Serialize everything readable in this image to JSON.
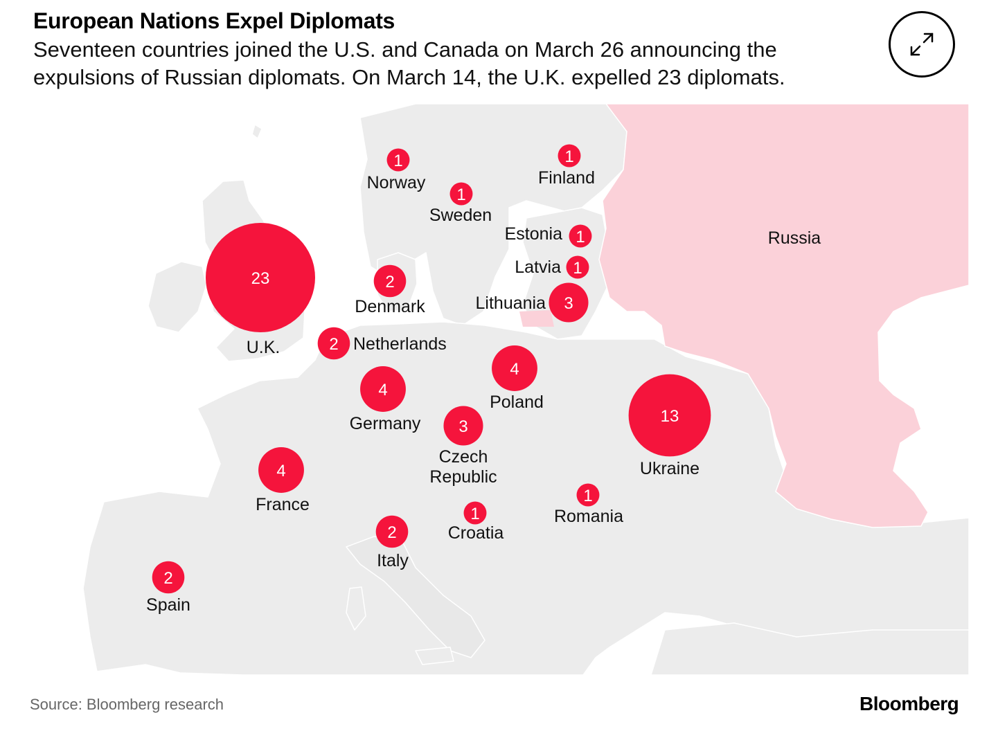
{
  "header": {
    "title": "European Nations Expel Diplomats",
    "subtitle": "Seventeen countries joined the U.S. and Canada on March 26 announcing the expulsions of Russian diplomats. On March 14, the U.K. expelled 23 diplomats."
  },
  "controls": {
    "expand_icon": "expand-arrows-icon"
  },
  "colors": {
    "bubble": "#f5143c",
    "russia": "#fbd1d9",
    "land": "#ececec",
    "background": "#ffffff"
  },
  "map": {
    "highlight": {
      "label": "Russia"
    },
    "countries": [
      {
        "label": "U.K.",
        "value": 23
      },
      {
        "label": "Ukraine",
        "value": 13
      },
      {
        "label": "Poland",
        "value": 4
      },
      {
        "label": "Germany",
        "value": 4
      },
      {
        "label": "France",
        "value": 4
      },
      {
        "label": "Lithuania",
        "value": 3
      },
      {
        "label": "Czech Republic",
        "value": 3
      },
      {
        "label": "Denmark",
        "value": 2
      },
      {
        "label": "Netherlands",
        "value": 2
      },
      {
        "label": "Italy",
        "value": 2
      },
      {
        "label": "Spain",
        "value": 2
      },
      {
        "label": "Norway",
        "value": 1
      },
      {
        "label": "Sweden",
        "value": 1
      },
      {
        "label": "Finland",
        "value": 1
      },
      {
        "label": "Estonia",
        "value": 1
      },
      {
        "label": "Latvia",
        "value": 1
      },
      {
        "label": "Romania",
        "value": 1
      },
      {
        "label": "Croatia",
        "value": 1
      }
    ]
  },
  "footer": {
    "source": "Source: Bloomberg research",
    "brand": "Bloomberg"
  }
}
